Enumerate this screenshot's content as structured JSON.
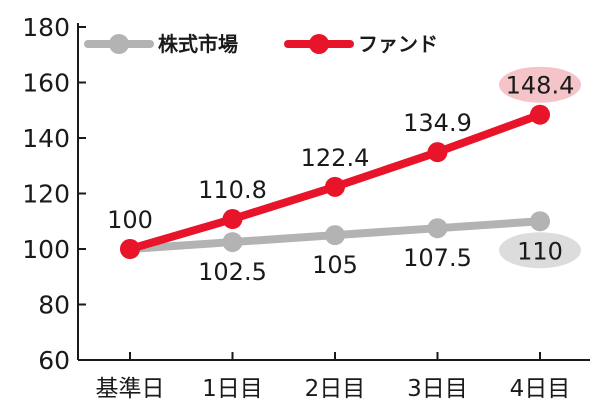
{
  "chart_data": {
    "type": "line",
    "categories": [
      "基準日",
      "1日目",
      "2日目",
      "3日目",
      "4日目"
    ],
    "ylim": [
      60,
      180
    ],
    "yticks": [
      60,
      80,
      100,
      120,
      140,
      160,
      180
    ],
    "grid": false,
    "legend_position": "top",
    "series": [
      {
        "name": "株式市場",
        "color": "#b3b3b3",
        "values": [
          100,
          102.5,
          105,
          107.5,
          110
        ],
        "labels": [
          "",
          "102.5",
          "105",
          "107.5",
          "110"
        ],
        "label_position": "below",
        "highlight_last": true,
        "highlight_color": "#dcdcdc"
      },
      {
        "name": "ファンド",
        "color": "#e8142a",
        "values": [
          100,
          110.8,
          122.4,
          134.9,
          148.4
        ],
        "labels": [
          "100",
          "110.8",
          "122.4",
          "134.9",
          "148.4"
        ],
        "label_position": "above",
        "highlight_last": true,
        "highlight_color": "#f5c4c8"
      }
    ]
  }
}
